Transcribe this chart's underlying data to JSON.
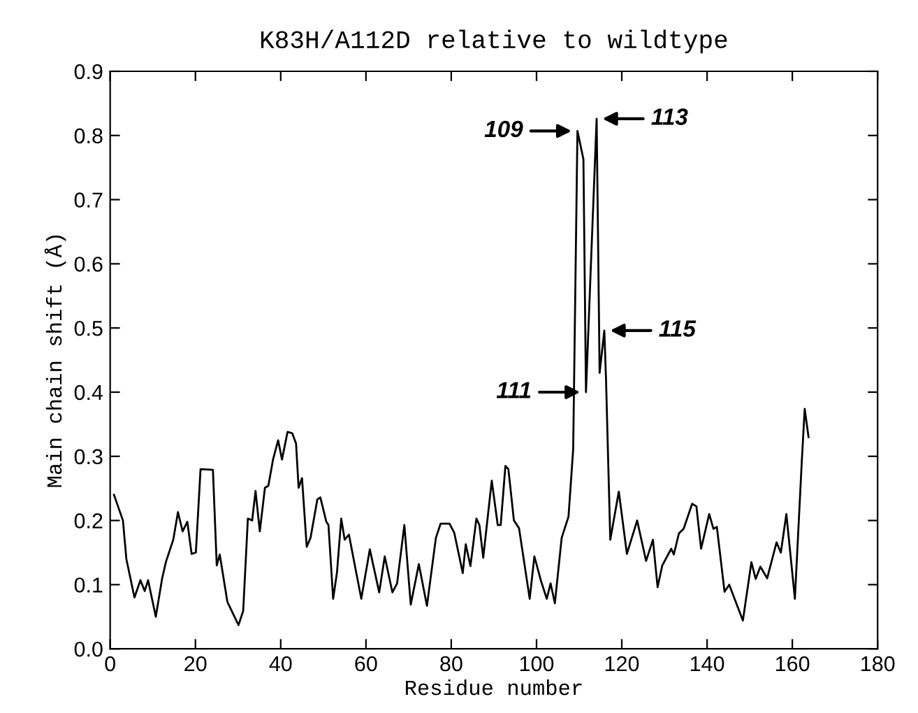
{
  "chart_data": {
    "type": "line",
    "title": "K83H/A112D relative to wildtype",
    "xlabel": "Residue number",
    "ylabel": "Main chain shift (Å)",
    "x": [
      0.9,
      3.0,
      3.8,
      5.7,
      7.1,
      8.1,
      8.9,
      10.7,
      12.2,
      13.1,
      14.8,
      15.9,
      17.0,
      18.1,
      19.1,
      20.1,
      21.2,
      24.1,
      25.0,
      25.7,
      27.5,
      30.1,
      31.2,
      32.3,
      33.3,
      34.1,
      35.1,
      36.3,
      37.1,
      38.2,
      39.4,
      40.3,
      41.6,
      42.7,
      43.6,
      44.2,
      45.0,
      46.1,
      47.0,
      48.6,
      49.3,
      50.7,
      51.2,
      52.3,
      53.2,
      54.2,
      55.0,
      56.0,
      58.9,
      60.9,
      63.1,
      64.4,
      66.2,
      67.3,
      69.0,
      70.5,
      72.4,
      74.3,
      76.4,
      77.5,
      79.6,
      80.7,
      82.7,
      83.4,
      84.5,
      85.9,
      86.6,
      87.5,
      89.5,
      90.9,
      91.6,
      92.7,
      93.4,
      94.7,
      95.9,
      98.4,
      99.5,
      101.0,
      102.4,
      103.3,
      104.3,
      105.9,
      107.5,
      108.6,
      109.6,
      111.0,
      111.6,
      112.9,
      114.1,
      114.8,
      115.9,
      116.3,
      117.3,
      119.3,
      121.2,
      123.6,
      125.7,
      127.3,
      128.4,
      129.5,
      131.6,
      132.2,
      133.4,
      134.5,
      136.5,
      137.5,
      138.6,
      140.5,
      141.5,
      142.3,
      144.1,
      145.2,
      148.4,
      150.4,
      151.4,
      152.5,
      154.1,
      156.3,
      157.3,
      158.6,
      160.6,
      162.2,
      162.9,
      163.8
    ],
    "series": [
      {
        "color": "#000000",
        "values": [
          0.24,
          0.2,
          0.14,
          0.08,
          0.107,
          0.09,
          0.107,
          0.05,
          0.11,
          0.136,
          0.17,
          0.213,
          0.183,
          0.198,
          0.148,
          0.15,
          0.28,
          0.279,
          0.13,
          0.147,
          0.073,
          0.037,
          0.059,
          0.203,
          0.2,
          0.246,
          0.183,
          0.251,
          0.254,
          0.295,
          0.325,
          0.295,
          0.338,
          0.336,
          0.32,
          0.251,
          0.266,
          0.159,
          0.173,
          0.233,
          0.236,
          0.198,
          0.193,
          0.078,
          0.119,
          0.203,
          0.17,
          0.178,
          0.078,
          0.155,
          0.088,
          0.144,
          0.088,
          0.102,
          0.193,
          0.069,
          0.132,
          0.067,
          0.173,
          0.195,
          0.195,
          0.181,
          0.118,
          0.163,
          0.129,
          0.203,
          0.193,
          0.142,
          0.262,
          0.193,
          0.193,
          0.285,
          0.28,
          0.2,
          0.188,
          0.078,
          0.144,
          0.107,
          0.078,
          0.102,
          0.071,
          0.173,
          0.206,
          0.311,
          0.807,
          0.763,
          0.4,
          0.623,
          0.826,
          0.43,
          0.496,
          0.42,
          0.17,
          0.245,
          0.148,
          0.2,
          0.137,
          0.17,
          0.096,
          0.13,
          0.156,
          0.147,
          0.18,
          0.187,
          0.226,
          0.222,
          0.156,
          0.21,
          0.187,
          0.19,
          0.089,
          0.1,
          0.044,
          0.135,
          0.109,
          0.128,
          0.11,
          0.166,
          0.15,
          0.21,
          0.078,
          0.29,
          0.374,
          0.33
        ]
      }
    ],
    "xlim": [
      0,
      180
    ],
    "xticks": [
      0,
      20,
      40,
      60,
      80,
      100,
      120,
      140,
      160,
      180
    ],
    "ylim": [
      0,
      0.9
    ],
    "yticks": [
      {
        "value": 0,
        "label": "0.0"
      },
      {
        "value": 0.1,
        "label": "0.1"
      },
      {
        "value": 0.2,
        "label": "0.2"
      },
      {
        "value": 0.3,
        "label": "0.3"
      },
      {
        "value": 0.4,
        "label": "0.4"
      },
      {
        "value": 0.5,
        "label": "0.5"
      },
      {
        "value": 0.6,
        "label": "0.6"
      },
      {
        "value": 0.7,
        "label": "0.7"
      },
      {
        "value": 0.8,
        "label": "0.8"
      },
      {
        "value": 0.9,
        "label": "0.9"
      }
    ],
    "annotations": [
      {
        "text": "109",
        "x": 109.6,
        "y": 0.807
      },
      {
        "text": "111",
        "x": 111.6,
        "y": 0.4
      },
      {
        "text": "113",
        "x": 114.1,
        "y": 0.826
      },
      {
        "text": "115",
        "x": 115.9,
        "y": 0.496
      }
    ],
    "grid": false,
    "legend": false,
    "marker": "none",
    "line_style": "solid"
  }
}
